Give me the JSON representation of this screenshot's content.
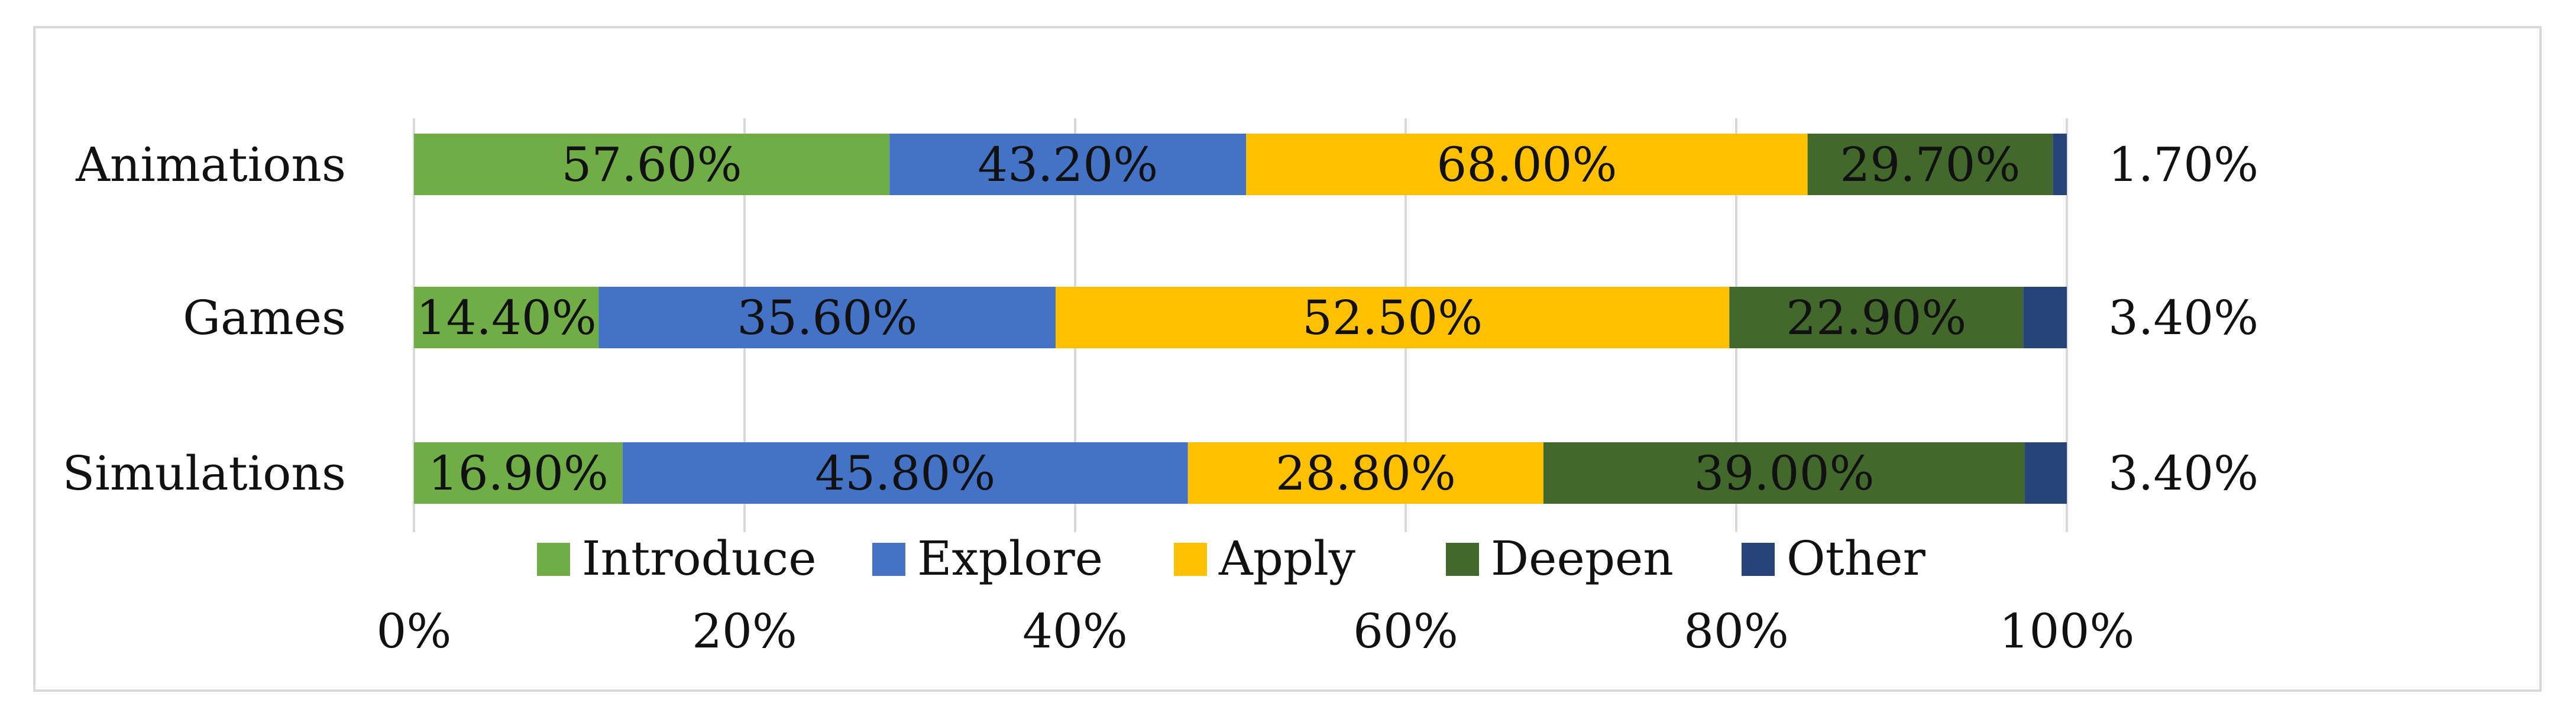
{
  "chart_data": {
    "type": "bar",
    "orientation": "horizontal",
    "stacked": "percent",
    "categories": [
      "Animations",
      "Games",
      "Simulations"
    ],
    "series": [
      {
        "name": "Introduce",
        "color": "#70ad47",
        "values": [
          57.6,
          14.4,
          16.9
        ],
        "labels": [
          "57.60%",
          "14.40%",
          "16.90%"
        ]
      },
      {
        "name": "Explore",
        "color": "#4472c4",
        "values": [
          43.2,
          35.6,
          45.8
        ],
        "labels": [
          "43.20%",
          "35.60%",
          "45.80%"
        ]
      },
      {
        "name": "Apply",
        "color": "#ffc000",
        "values": [
          68.0,
          52.5,
          28.8
        ],
        "labels": [
          "68.00%",
          "52.50%",
          "28.80%"
        ]
      },
      {
        "name": "Deepen",
        "color": "#43682b",
        "values": [
          29.7,
          22.9,
          39.0
        ],
        "labels": [
          "29.70%",
          "22.90%",
          "39.00%"
        ]
      },
      {
        "name": "Other",
        "color": "#264478",
        "values": [
          1.7,
          3.4,
          3.4
        ],
        "labels": [
          "1.70%",
          "3.40%",
          "3.40%"
        ]
      }
    ],
    "x_ticks": [
      "0%",
      "20%",
      "40%",
      "60%",
      "80%",
      "100%"
    ],
    "xlim": [
      0,
      100
    ],
    "legend_position": "bottom",
    "grid": true
  }
}
